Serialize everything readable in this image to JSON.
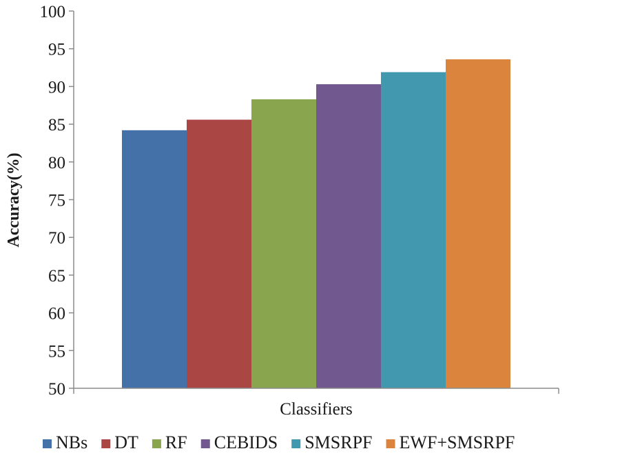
{
  "chart_data": {
    "type": "bar",
    "categories": [
      "Classifiers"
    ],
    "series": [
      {
        "name": "NBs",
        "values": [
          84.2
        ],
        "color": "#4472a8"
      },
      {
        "name": "DT",
        "values": [
          85.6
        ],
        "color": "#aa4643"
      },
      {
        "name": "RF",
        "values": [
          88.3
        ],
        "color": "#89a54e"
      },
      {
        "name": "CEBIDS",
        "values": [
          90.3
        ],
        "color": "#71588f"
      },
      {
        "name": "SMSRPF",
        "values": [
          91.9
        ],
        "color": "#4198af"
      },
      {
        "name": "EWF+SMSRPF",
        "values": [
          93.6
        ],
        "color": "#db843d"
      }
    ],
    "xlabel": "Classifiers",
    "ylabel": "Accuracy(%)",
    "ylim": [
      50,
      100
    ],
    "yticks": [
      50,
      55,
      60,
      65,
      70,
      75,
      80,
      85,
      90,
      95,
      100
    ],
    "grid": false,
    "legend_position": "bottom"
  }
}
